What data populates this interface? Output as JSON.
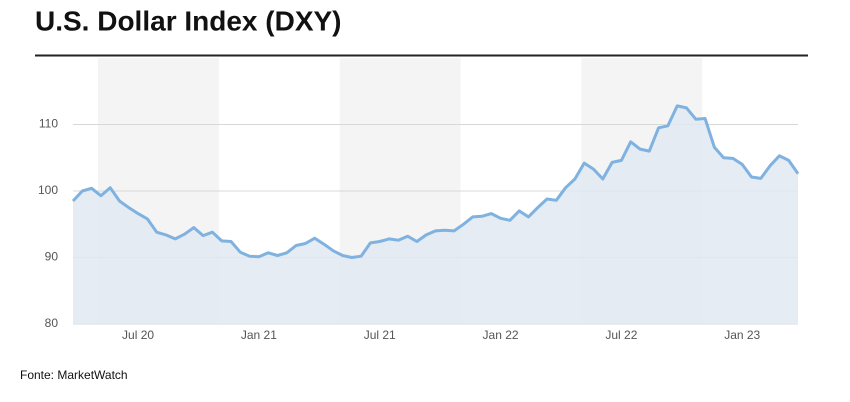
{
  "chart_data": {
    "type": "line",
    "title": "U.S. Dollar Index (DXY)",
    "source": "Fonte: MarketWatch",
    "categories": [
      null,
      null,
      null,
      null,
      null,
      null,
      null,
      "Jul 20",
      null,
      null,
      null,
      null,
      null,
      null,
      null,
      null,
      null,
      null,
      null,
      null,
      "Jan 21",
      null,
      null,
      null,
      null,
      null,
      null,
      null,
      null,
      null,
      null,
      null,
      null,
      "Jul 21",
      null,
      null,
      null,
      null,
      null,
      null,
      null,
      null,
      null,
      null,
      null,
      null,
      "Jan 22",
      null,
      null,
      null,
      null,
      null,
      null,
      null,
      null,
      null,
      null,
      null,
      null,
      "Jul 22",
      null,
      null,
      null,
      null,
      null,
      null,
      null,
      null,
      null,
      null,
      null,
      null,
      "Jan 23",
      null,
      null,
      null,
      null,
      null,
      null
    ],
    "values": [
      98.5,
      100.0,
      100.4,
      99.3,
      100.5,
      98.5,
      97.5,
      96.6,
      95.8,
      93.8,
      93.4,
      92.8,
      93.5,
      94.5,
      93.3,
      93.8,
      92.5,
      92.4,
      90.8,
      90.2,
      90.1,
      90.7,
      90.3,
      90.7,
      91.8,
      92.1,
      92.9,
      92.0,
      91.0,
      90.3,
      90.0,
      90.2,
      92.2,
      92.4,
      92.8,
      92.6,
      93.2,
      92.4,
      93.4,
      94.0,
      94.1,
      94.0,
      95.0,
      96.1,
      96.2,
      96.6,
      95.9,
      95.6,
      97.0,
      96.1,
      97.5,
      98.8,
      98.6,
      100.5,
      101.8,
      104.2,
      103.3,
      101.8,
      104.3,
      104.6,
      107.4,
      106.3,
      106.0,
      109.5,
      109.8,
      112.8,
      112.5,
      110.8,
      110.9,
      106.6,
      105.0,
      104.9,
      104.0,
      102.1,
      101.9,
      103.8,
      105.3,
      104.6,
      102.6
    ],
    "color": "#7fb2e0",
    "area_color": "#e1e9f1",
    "ylim": [
      80,
      120
    ],
    "yticks": [
      80,
      90,
      100,
      110
    ],
    "grid": true
  }
}
